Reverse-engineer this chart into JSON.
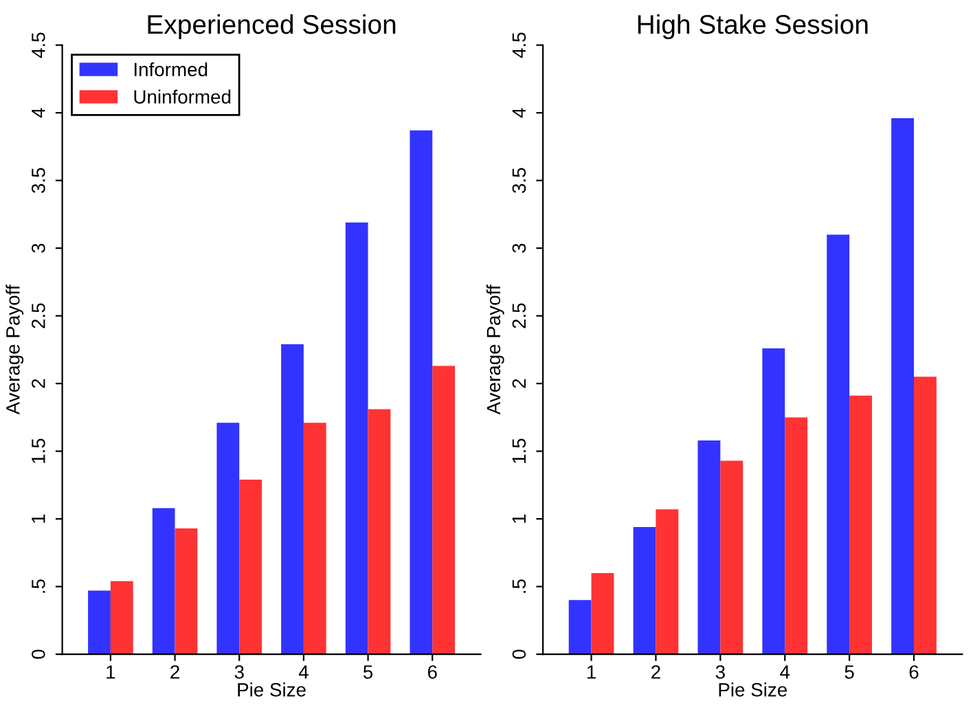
{
  "chart_data": [
    {
      "type": "bar",
      "title": "Experienced Session",
      "xlabel": "Pie Size",
      "ylabel": "Average Payoff",
      "categories": [
        "1",
        "2",
        "3",
        "4",
        "5",
        "6"
      ],
      "ylim": [
        0,
        4.5
      ],
      "yticks": [
        0,
        {
          "value": 0.5,
          "label": ".5"
        },
        1,
        1.5,
        2,
        2.5,
        3,
        3.5,
        4,
        4.5
      ],
      "legend": "top left",
      "grid": false,
      "series": [
        {
          "name": "Informed",
          "color": "#3333ff",
          "values": [
            0.47,
            1.08,
            1.71,
            2.29,
            3.19,
            3.87
          ]
        },
        {
          "name": "Uninformed",
          "color": "#ff3333",
          "values": [
            0.54,
            0.93,
            1.29,
            1.71,
            1.81,
            2.13
          ]
        }
      ]
    },
    {
      "type": "bar",
      "title": "High Stake Session",
      "xlabel": "Pie Size",
      "ylabel": "Average Payoff",
      "categories": [
        "1",
        "2",
        "3",
        "4",
        "5",
        "6"
      ],
      "ylim": [
        0,
        4.5
      ],
      "yticks": [
        0,
        {
          "value": 0.5,
          "label": ".5"
        },
        1,
        1.5,
        2,
        2.5,
        3,
        3.5,
        4,
        4.5
      ],
      "grid": false,
      "series": [
        {
          "color": "#3333ff",
          "values": [
            0.4,
            0.94,
            1.58,
            2.26,
            3.1,
            3.96
          ]
        },
        {
          "color": "#ff3333",
          "values": [
            0.6,
            1.07,
            1.43,
            1.75,
            1.91,
            2.05
          ]
        }
      ]
    }
  ]
}
